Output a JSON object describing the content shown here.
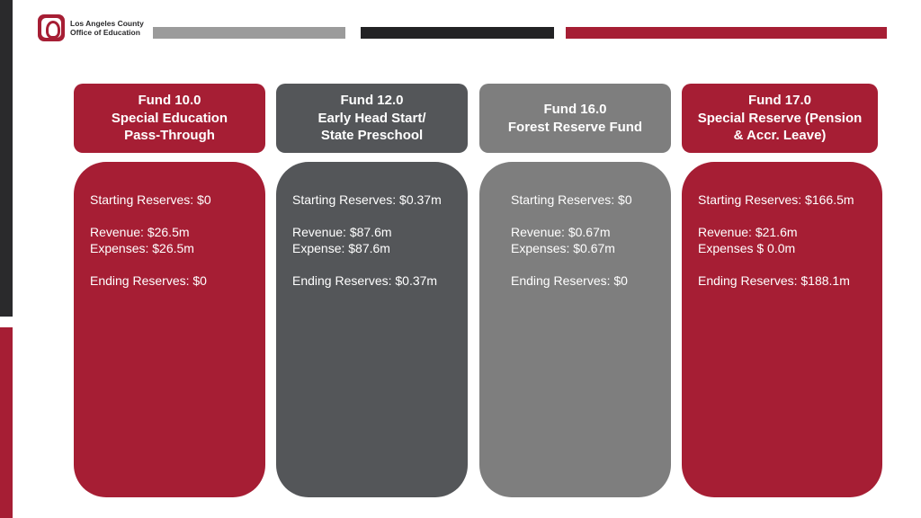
{
  "logo": {
    "line1": "Los Angeles County",
    "line2": "Office of Education"
  },
  "funds": [
    {
      "title": [
        "Fund 10.0",
        "Special Education",
        "Pass-Through"
      ],
      "starting": "Starting Reserves: $0",
      "revenue": "Revenue: $26.5m",
      "expenses": "Expenses: $26.5m",
      "ending": "Ending Reserves: $0"
    },
    {
      "title": [
        "Fund 12.0",
        "Early Head Start/",
        "State Preschool"
      ],
      "starting": "Starting Reserves: $0.37m",
      "revenue": "Revenue: $87.6m",
      "expenses": "Expense: $87.6m",
      "ending": "Ending Reserves: $0.37m"
    },
    {
      "title": [
        "Fund 16.0",
        "Forest Reserve Fund"
      ],
      "starting": "Starting Reserves: $0",
      "revenue": "Revenue: $0.67m",
      "expenses": "Expenses: $0.67m",
      "ending": "Ending Reserves: $0"
    },
    {
      "title": [
        "Fund 17.0",
        "Special Reserve (Pension",
        "& Accr. Leave)"
      ],
      "starting": "Starting Reserves: $166.5m",
      "revenue": "Revenue: $21.6m",
      "expenses": "Expenses $ 0.0m",
      "ending": "Ending Reserves: $188.1m"
    }
  ],
  "colors": {
    "red": "#a61e34",
    "dark": "#545659",
    "gray": "#7e7e7e",
    "charcoal": "#222224"
  }
}
